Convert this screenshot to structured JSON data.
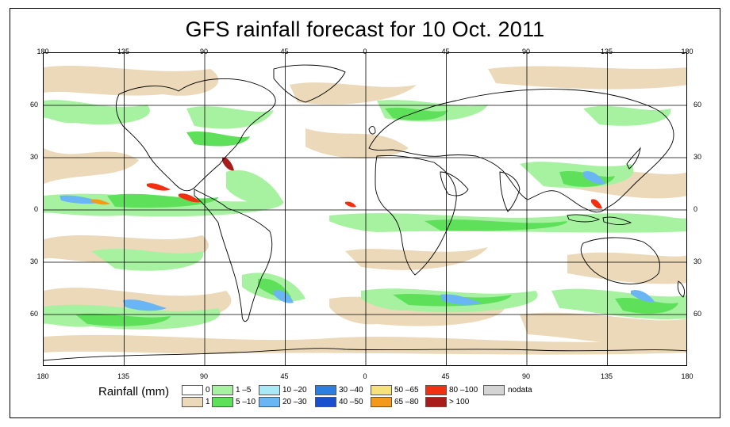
{
  "title": "GFS rainfall forecast for 10 Oct. 2011",
  "map": {
    "lon_ticks": [
      "180",
      "135",
      "90",
      "45",
      "0",
      "45",
      "90",
      "135",
      "180"
    ],
    "lat_ticks": [
      "60",
      "30",
      "0",
      "30",
      "60"
    ]
  },
  "legend": {
    "title": "Rainfall (mm)",
    "items": [
      {
        "label": "0",
        "color": "#ffffff"
      },
      {
        "label": "1",
        "color": "#ecd9b9"
      },
      {
        "label": "1 –5",
        "color": "#a6f2a0"
      },
      {
        "label": "5 –10",
        "color": "#5fe05a"
      },
      {
        "label": "10 –20",
        "color": "#a9e9f7"
      },
      {
        "label": "20 –30",
        "color": "#6ab6f5"
      },
      {
        "label": "30 –40",
        "color": "#2c7fe0"
      },
      {
        "label": "40 –50",
        "color": "#1a4fd0"
      },
      {
        "label": "50 –65",
        "color": "#f6e27a"
      },
      {
        "label": "65 –80",
        "color": "#f39a1c"
      },
      {
        "label": "80 –100",
        "color": "#f03010"
      },
      {
        "label": "> 100",
        "color": "#a81c1c"
      },
      {
        "label": "nodata",
        "color": "#d4d4d4"
      }
    ]
  }
}
